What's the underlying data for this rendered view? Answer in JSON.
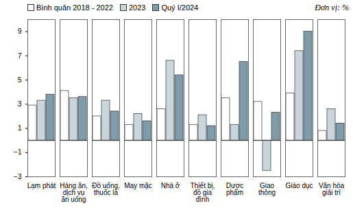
{
  "chart_data": {
    "type": "bar",
    "subtitle": "Đơn vị: %",
    "categories": [
      "Lạm phát",
      "Hàng ăn, dịch vụ ăn uống",
      "Đồ uống, thuốc lá",
      "May mặc",
      "Nhà ở",
      "Thiết bị, đồ gia đình",
      "Dược phẩm",
      "Giao thông",
      "Giáo dục",
      "Văn hóa giải trí"
    ],
    "series": [
      {
        "name": "Bình quân 2018 - 2022",
        "color": "#ffffff",
        "values": [
          2.9,
          4.1,
          2.0,
          1.3,
          2.6,
          1.3,
          3.5,
          3.2,
          3.9,
          0.8
        ]
      },
      {
        "name": "2023",
        "color": "#c9d6de",
        "values": [
          3.3,
          3.5,
          3.3,
          2.2,
          6.6,
          2.1,
          1.3,
          -2.5,
          7.4,
          2.6
        ]
      },
      {
        "name": "Quý I/2024",
        "color": "#7f9cab",
        "values": [
          3.8,
          3.6,
          2.4,
          1.6,
          5.4,
          1.2,
          6.5,
          2.3,
          9.0,
          1.4
        ]
      }
    ],
    "ylim": [
      -3,
      10
    ],
    "yticks": [
      -3,
      -1,
      1,
      3,
      5,
      7,
      9
    ],
    "grid": false,
    "legend": "top"
  }
}
